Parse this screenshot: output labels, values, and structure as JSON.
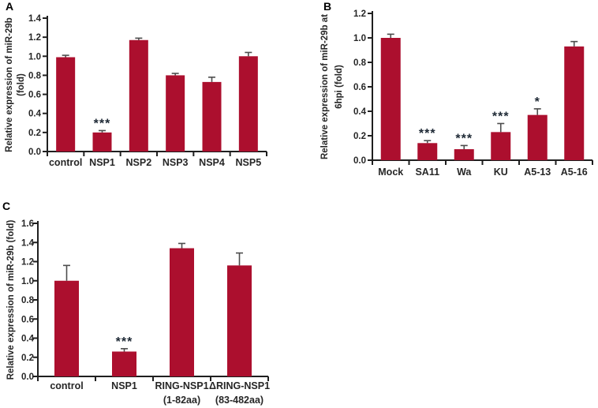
{
  "figure": {
    "colors": {
      "bar": "#ac0f2e",
      "axis": "#1f1f1f",
      "error_bar": "#4d4d4d",
      "significance": "#1c2733",
      "text": "#262626"
    }
  },
  "chart_data": [
    {
      "panel": "A",
      "type": "bar",
      "categories": [
        "control",
        "NSP1",
        "NSP2",
        "NSP3",
        "NSP4",
        "NSP5"
      ],
      "values": [
        0.99,
        0.2,
        1.17,
        0.8,
        0.73,
        1.0
      ],
      "errors": [
        0.02,
        0.02,
        0.02,
        0.02,
        0.05,
        0.04
      ],
      "significance": [
        "",
        "***",
        "",
        "",
        "",
        ""
      ],
      "ylabel_lines": [
        "Relative expression of miR-29b",
        "(fold)"
      ],
      "ylim": [
        0,
        1.4
      ],
      "yticks": [
        "0.0",
        "0.2",
        "0.4",
        "0.6",
        "0.8",
        "1.0",
        "1.2",
        "1.4"
      ],
      "grid": false,
      "legend": null
    },
    {
      "panel": "B",
      "type": "bar",
      "categories": [
        "Mock",
        "SA11",
        "Wa",
        "KU",
        "A5-13",
        "A5-16"
      ],
      "values": [
        1.0,
        0.14,
        0.09,
        0.23,
        0.37,
        0.93
      ],
      "errors": [
        0.03,
        0.02,
        0.03,
        0.07,
        0.05,
        0.04
      ],
      "significance": [
        "",
        "***",
        "***",
        "***",
        "*",
        ""
      ],
      "ylabel_lines": [
        "Relative expression of miR-29b at",
        "6hpi (fold)"
      ],
      "ylim": [
        0,
        1.2
      ],
      "yticks": [
        "0.0",
        "0.2",
        "0.4",
        "0.6",
        "0.8",
        "1.0",
        "1.2"
      ],
      "grid": false,
      "legend": null
    },
    {
      "panel": "C",
      "type": "bar",
      "categories": [
        "control",
        "NSP1",
        "RING-NSP1\n(1-82aa)",
        "ΔRING-NSP1\n(83-482aa)"
      ],
      "values": [
        1.0,
        0.26,
        1.34,
        1.16
      ],
      "errors": [
        0.16,
        0.03,
        0.05,
        0.13
      ],
      "significance": [
        "",
        "***",
        "",
        ""
      ],
      "ylabel_lines": [
        "Relative expression of miR-29b (fold)"
      ],
      "ylim": [
        0,
        1.6
      ],
      "yticks": [
        "0.0",
        "0.2",
        "0.4",
        "0.6",
        "0.8",
        "1.0",
        "1.2",
        "1.4",
        "1.6"
      ],
      "grid": false,
      "legend": null
    }
  ]
}
